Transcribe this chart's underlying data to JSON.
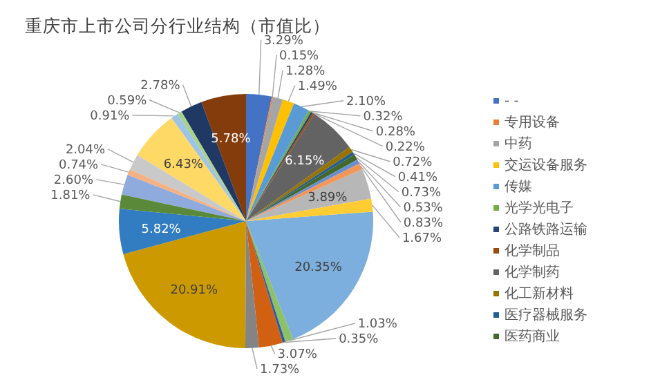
{
  "chart_data": {
    "type": "pie",
    "title": "重庆市上市公司分行业结构（市值比）",
    "categories": [
      "- -",
      "专用设备",
      "中药",
      "交运设备服务",
      "传媒",
      "光学光电子",
      "公路铁路运输",
      "化学制品",
      "化学制药",
      "化工新材料",
      "医疗器械服务",
      "医药商业",
      null,
      null,
      null,
      null,
      null,
      null,
      null,
      null,
      null,
      null,
      null,
      null,
      null,
      null,
      null,
      null,
      null,
      null,
      null,
      null
    ],
    "values": [
      3.29,
      0.15,
      1.28,
      1.49,
      2.1,
      0.32,
      0.28,
      0.22,
      6.15,
      0.72,
      0.41,
      0.73,
      0.53,
      0.83,
      3.89,
      1.67,
      20.35,
      1.03,
      0.35,
      3.07,
      1.73,
      20.91,
      5.82,
      1.81,
      2.6,
      0.74,
      2.04,
      6.43,
      0.91,
      0.59,
      2.78,
      5.78
    ],
    "value_labels": [
      "3.29%",
      "0.15%",
      "1.28%",
      "1.49%",
      "2.10%",
      "0.32%",
      "0.28%",
      "0.22%",
      "6.15%",
      "0.72%",
      "0.41%",
      "0.73%",
      "0.53%",
      "0.83%",
      "3.89%",
      "1.67%",
      "20.35%",
      "1.03%",
      "0.35%",
      "3.07%",
      "1.73%",
      "20.91%",
      "5.82%",
      "1.81%",
      "2.60%",
      "0.74%",
      "2.04%",
      "6.43%",
      "0.91%",
      "0.59%",
      "2.78%",
      "5.78%"
    ],
    "colors": [
      "#4472c4",
      "#ed7d31",
      "#a5a5a5",
      "#ffc000",
      "#5b9bd5",
      "#70ad47",
      "#264478",
      "#9e480e",
      "#636363",
      "#997300",
      "#255e91",
      "#43682b",
      "#698ed0",
      "#f1975a",
      "#b7b7b7",
      "#ffcd33",
      "#7cafdd",
      "#8cc168",
      "#335aa1",
      "#d26012",
      "#848484",
      "#cc9a00",
      "#327dc2",
      "#5a8a39",
      "#8faadc",
      "#f4b183",
      "#c9c9c9",
      "#ffd966",
      "#9dc3e6",
      "#a9d18e",
      "#203864",
      "#843c0c"
    ],
    "legend": "right"
  }
}
